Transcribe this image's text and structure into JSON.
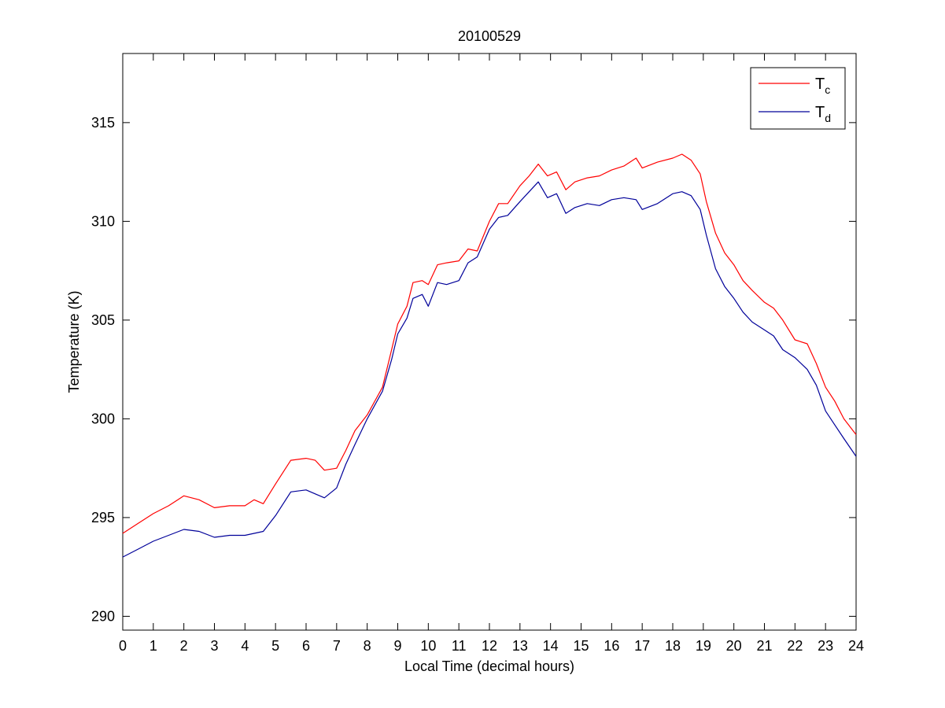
{
  "chart_data": {
    "type": "line",
    "title": "20100529",
    "xlabel": "Local Time (decimal hours)",
    "ylabel": "Temperature (K)",
    "xlim": [
      0,
      24
    ],
    "ylim": [
      289.3,
      318.5
    ],
    "xticks": [
      0,
      1,
      2,
      3,
      4,
      5,
      6,
      7,
      8,
      9,
      10,
      11,
      12,
      13,
      14,
      15,
      16,
      17,
      18,
      19,
      20,
      21,
      22,
      23,
      24
    ],
    "yticks": [
      290,
      295,
      300,
      305,
      310,
      315
    ],
    "grid": false,
    "legend_position": "top-right",
    "series": [
      {
        "name": "T",
        "name_sub": "c",
        "color": "#ff0000",
        "points": [
          [
            0,
            294.2
          ],
          [
            0.5,
            294.7
          ],
          [
            1,
            295.2
          ],
          [
            1.5,
            295.6
          ],
          [
            2,
            296.1
          ],
          [
            2.5,
            295.9
          ],
          [
            3,
            295.5
          ],
          [
            3.5,
            295.6
          ],
          [
            4,
            295.6
          ],
          [
            4.3,
            295.9
          ],
          [
            4.6,
            295.7
          ],
          [
            5,
            296.7
          ],
          [
            5.5,
            297.9
          ],
          [
            6,
            298.0
          ],
          [
            6.3,
            297.9
          ],
          [
            6.6,
            297.4
          ],
          [
            7,
            297.5
          ],
          [
            7.3,
            298.4
          ],
          [
            7.6,
            299.4
          ],
          [
            8,
            300.2
          ],
          [
            8.5,
            301.6
          ],
          [
            8.8,
            303.5
          ],
          [
            9,
            304.8
          ],
          [
            9.3,
            305.7
          ],
          [
            9.5,
            306.9
          ],
          [
            9.8,
            307.0
          ],
          [
            10,
            306.8
          ],
          [
            10.3,
            307.8
          ],
          [
            10.6,
            307.9
          ],
          [
            11,
            308.0
          ],
          [
            11.3,
            308.6
          ],
          [
            11.6,
            308.5
          ],
          [
            12,
            310.0
          ],
          [
            12.3,
            310.9
          ],
          [
            12.6,
            310.9
          ],
          [
            13,
            311.8
          ],
          [
            13.3,
            312.3
          ],
          [
            13.6,
            312.9
          ],
          [
            13.9,
            312.3
          ],
          [
            14.2,
            312.5
          ],
          [
            14.5,
            311.6
          ],
          [
            14.8,
            312.0
          ],
          [
            15.2,
            312.2
          ],
          [
            15.6,
            312.3
          ],
          [
            16,
            312.6
          ],
          [
            16.4,
            312.8
          ],
          [
            16.8,
            313.2
          ],
          [
            17,
            312.7
          ],
          [
            17.5,
            313.0
          ],
          [
            18,
            313.2
          ],
          [
            18.3,
            313.4
          ],
          [
            18.6,
            313.1
          ],
          [
            18.9,
            312.4
          ],
          [
            19.1,
            311.0
          ],
          [
            19.4,
            309.4
          ],
          [
            19.7,
            308.4
          ],
          [
            20,
            307.8
          ],
          [
            20.3,
            307.0
          ],
          [
            20.6,
            306.5
          ],
          [
            21,
            305.9
          ],
          [
            21.3,
            305.6
          ],
          [
            21.6,
            305.0
          ],
          [
            22,
            304.0
          ],
          [
            22.4,
            303.8
          ],
          [
            22.7,
            302.8
          ],
          [
            23,
            301.6
          ],
          [
            23.3,
            300.9
          ],
          [
            23.6,
            300.0
          ],
          [
            24,
            299.2
          ]
        ]
      },
      {
        "name": "T",
        "name_sub": "d",
        "color": "#000099",
        "points": [
          [
            0,
            293.0
          ],
          [
            0.5,
            293.4
          ],
          [
            1,
            293.8
          ],
          [
            1.5,
            294.1
          ],
          [
            2,
            294.4
          ],
          [
            2.5,
            294.3
          ],
          [
            3,
            294.0
          ],
          [
            3.5,
            294.1
          ],
          [
            4,
            294.1
          ],
          [
            4.3,
            294.2
          ],
          [
            4.6,
            294.3
          ],
          [
            5,
            295.1
          ],
          [
            5.5,
            296.3
          ],
          [
            6,
            296.4
          ],
          [
            6.3,
            296.2
          ],
          [
            6.6,
            296.0
          ],
          [
            7,
            296.5
          ],
          [
            7.3,
            297.7
          ],
          [
            7.6,
            298.7
          ],
          [
            8,
            300.0
          ],
          [
            8.5,
            301.4
          ],
          [
            8.8,
            303.0
          ],
          [
            9,
            304.3
          ],
          [
            9.3,
            305.1
          ],
          [
            9.5,
            306.1
          ],
          [
            9.8,
            306.3
          ],
          [
            10,
            305.7
          ],
          [
            10.3,
            306.9
          ],
          [
            10.6,
            306.8
          ],
          [
            11,
            307.0
          ],
          [
            11.3,
            307.9
          ],
          [
            11.6,
            308.2
          ],
          [
            12,
            309.6
          ],
          [
            12.3,
            310.2
          ],
          [
            12.6,
            310.3
          ],
          [
            13,
            311.0
          ],
          [
            13.3,
            311.5
          ],
          [
            13.6,
            312.0
          ],
          [
            13.9,
            311.2
          ],
          [
            14.2,
            311.4
          ],
          [
            14.5,
            310.4
          ],
          [
            14.8,
            310.7
          ],
          [
            15.2,
            310.9
          ],
          [
            15.6,
            310.8
          ],
          [
            16,
            311.1
          ],
          [
            16.4,
            311.2
          ],
          [
            16.8,
            311.1
          ],
          [
            17,
            310.6
          ],
          [
            17.5,
            310.9
          ],
          [
            18,
            311.4
          ],
          [
            18.3,
            311.5
          ],
          [
            18.6,
            311.3
          ],
          [
            18.9,
            310.6
          ],
          [
            19.1,
            309.3
          ],
          [
            19.4,
            307.6
          ],
          [
            19.7,
            306.7
          ],
          [
            20,
            306.1
          ],
          [
            20.3,
            305.4
          ],
          [
            20.6,
            304.9
          ],
          [
            21,
            304.5
          ],
          [
            21.3,
            304.2
          ],
          [
            21.6,
            303.5
          ],
          [
            22,
            303.1
          ],
          [
            22.4,
            302.5
          ],
          [
            22.7,
            301.7
          ],
          [
            23,
            300.4
          ],
          [
            23.3,
            299.7
          ],
          [
            23.6,
            299.0
          ],
          [
            24,
            298.1
          ]
        ]
      }
    ]
  }
}
